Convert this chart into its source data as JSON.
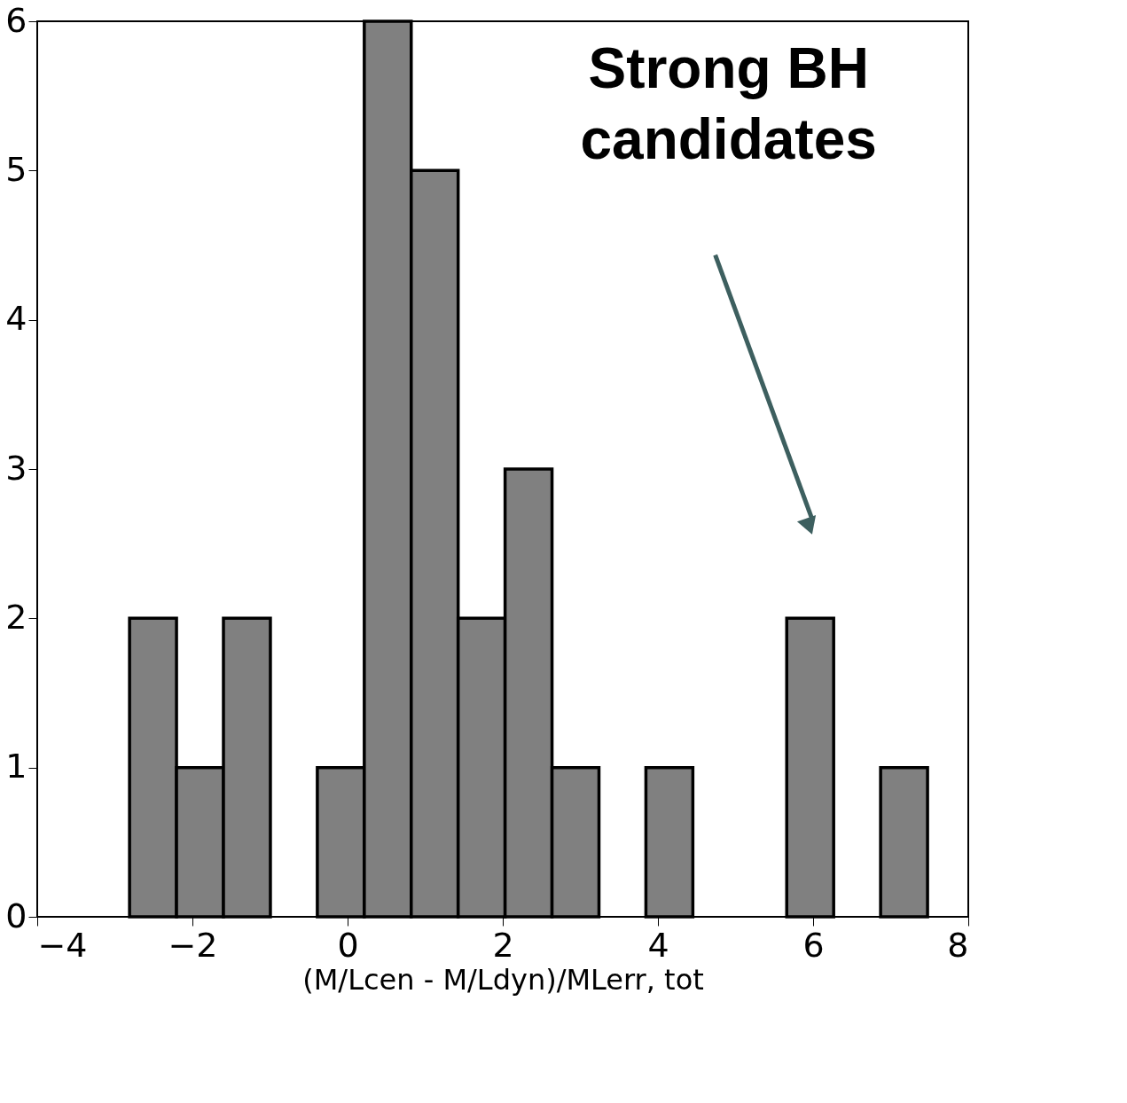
{
  "chart_data": {
    "type": "histogram",
    "bins": [
      -2.81,
      -2.205,
      -1.6,
      -0.995,
      -0.39,
      0.215,
      0.82,
      1.425,
      2.03,
      2.635,
      3.24,
      3.845,
      4.45,
      5.055,
      5.66,
      6.265,
      6.87,
      7.475
    ],
    "values": [
      2,
      1,
      2,
      0,
      1,
      6,
      5,
      2,
      3,
      1,
      0,
      1,
      0,
      0,
      2,
      0,
      1
    ],
    "color": "#808080",
    "xlabel": "(M/Lcen - M/Ldyn)/MLerr, tot",
    "xlim": [
      -4,
      8
    ],
    "xticks": [
      -4,
      -2,
      0,
      2,
      4,
      6,
      8
    ],
    "ylim": [
      0,
      6
    ],
    "yticks": [
      0,
      1,
      2,
      3,
      4,
      5,
      6
    ],
    "grid": false,
    "annotations": [
      "Strong BH\ncandidates"
    ]
  }
}
